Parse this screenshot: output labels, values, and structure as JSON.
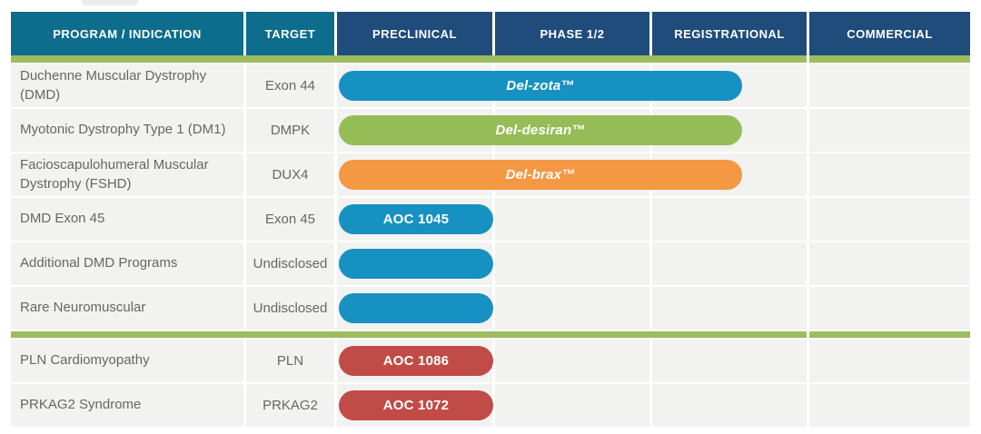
{
  "chart_data": {
    "type": "table",
    "columns": [
      "PROGRAM / INDICATION",
      "TARGET",
      "PRECLINICAL",
      "PHASE 1/2",
      "REGISTRATIONAL",
      "COMMERCIAL"
    ],
    "groups": [
      {
        "rows": [
          {
            "program": "Duchenne Muscular Dystrophy (DMD)",
            "target": "Exon 44",
            "bar": {
              "label": "Del-zota™",
              "color": "#1691C1",
              "start_stage": "PRECLINICAL",
              "end_stage": "REGISTRATIONAL (partial)",
              "stage_span": 2.6
            }
          },
          {
            "program": "Myotonic Dystrophy Type 1 (DM1)",
            "target": "DMPK",
            "bar": {
              "label": "Del-desiran™",
              "color": "#96BC58",
              "start_stage": "PRECLINICAL",
              "end_stage": "REGISTRATIONAL (partial)",
              "stage_span": 2.6
            }
          },
          {
            "program": "Facioscapulohumeral Muscular Dystrophy (FSHD)",
            "target": "DUX4",
            "bar": {
              "label": "Del-brax™",
              "color": "#F49843",
              "start_stage": "PRECLINICAL",
              "end_stage": "REGISTRATIONAL (partial)",
              "stage_span": 2.6
            }
          },
          {
            "program": "DMD Exon 45",
            "target": "Exon 45",
            "bar": {
              "label": "AOC 1045",
              "color": "#1691C1",
              "start_stage": "PRECLINICAL",
              "end_stage": "PRECLINICAL",
              "stage_span": 1
            }
          },
          {
            "program": "Additional DMD Programs",
            "target": "Undisclosed",
            "bar": {
              "label": "",
              "color": "#1691C1",
              "start_stage": "PRECLINICAL",
              "end_stage": "PRECLINICAL",
              "stage_span": 1
            }
          },
          {
            "program": "Rare Neuromuscular",
            "target": "Undisclosed",
            "bar": {
              "label": "",
              "color": "#1691C1",
              "start_stage": "PRECLINICAL",
              "end_stage": "PRECLINICAL",
              "stage_span": 1
            }
          }
        ]
      },
      {
        "rows": [
          {
            "program": "PLN Cardiomyopathy",
            "target": "PLN",
            "bar": {
              "label": "AOC 1086",
              "color": "#C14B47",
              "start_stage": "PRECLINICAL",
              "end_stage": "PRECLINICAL",
              "stage_span": 1
            }
          },
          {
            "program": "PRKAG2 Syndrome",
            "target": "PRKAG2",
            "bar": {
              "label": "AOC 1072",
              "color": "#C14B47",
              "start_stage": "PRECLINICAL",
              "end_stage": "PRECLINICAL",
              "stage_span": 1
            }
          }
        ]
      }
    ]
  },
  "theme": {
    "header_teal": "#0E6C8C",
    "header_navy": "#204C7C",
    "accent_green": "#9CBC5E",
    "row_background": "#F2F2F0",
    "row_text": "#666666",
    "bar_text": "#FFFFFF",
    "bar_blue": "#1691C1",
    "bar_green": "#96BC58",
    "bar_orange": "#F49843",
    "bar_red": "#C14B47",
    "page_background": "#FFFFFF"
  }
}
